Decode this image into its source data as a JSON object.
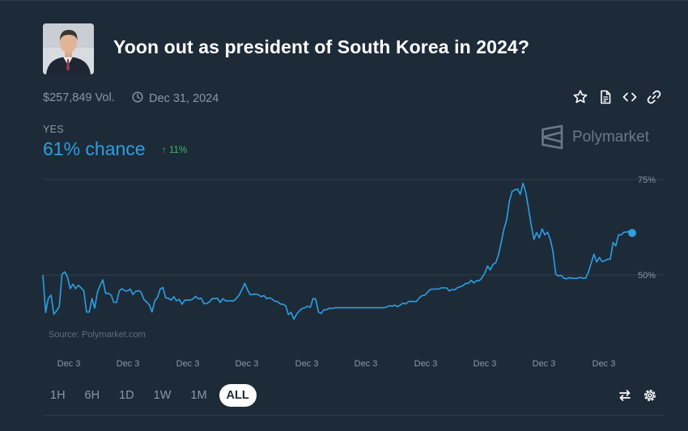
{
  "market": {
    "title": "Yoon out as president of South Korea in 2024?",
    "volume": "$257,849 Vol.",
    "end_date": "Dec 31, 2024",
    "outcome": "YES",
    "chance": "61% chance",
    "change": "11%",
    "brand": "Polymarket",
    "source": "Source: Polymarket.com"
  },
  "icons": {
    "clock": "clock-icon",
    "star": "star-icon",
    "document": "document-icon",
    "embed": "code-icon",
    "link": "link-icon",
    "swap": "swap-icon",
    "settings": "gear-icon",
    "brand": "polymarket-logo"
  },
  "colors": {
    "accent": "#2e9fe0",
    "positive": "#3fb56a",
    "background": "#1d2b39"
  },
  "time_ranges": {
    "items": [
      "1H",
      "6H",
      "1D",
      "1W",
      "1M",
      "ALL"
    ],
    "selected": "ALL"
  },
  "chart_data": {
    "type": "line",
    "title": "",
    "series": [
      {
        "values": [
          50,
          40.2,
          43.9,
          44.7,
          39.7,
          40.6,
          41.7,
          50.2,
          50.8,
          49.5,
          46.4,
          47.6,
          46.4,
          47.3,
          46.6,
          45.8,
          40.3,
          40.3,
          43.8,
          41.3,
          45.5,
          47.3,
          48.7,
          45.2,
          45.2,
          44.7,
          42.8,
          42.8,
          45.8,
          46.4,
          45.9,
          45.8,
          46.3,
          44.9,
          45.7,
          45.9,
          45.5,
          43.6,
          42.9,
          42.2,
          40.3,
          43.2,
          44.1,
          46.3,
          46.7,
          44,
          43.9,
          43.4,
          44.3,
          43.2,
          43.6,
          42.3,
          43.4,
          43.4,
          43.4,
          43.7,
          44.4,
          43.7,
          43.9,
          42.5,
          42.5,
          42.9,
          43.8,
          43.8,
          43.9,
          42.8,
          43.8,
          43.2,
          43.2,
          43.2,
          43.2,
          43.9,
          44.8,
          46.2,
          47.8,
          46.1,
          44.8,
          44.9,
          45,
          44.8,
          44.3,
          44.6,
          43.8,
          44,
          43.7,
          43.1,
          43,
          42.4,
          42.3,
          41.9,
          39.6,
          40.2,
          38.4,
          39.7,
          40.6,
          41.2,
          41.4,
          41.8,
          41.5,
          43.8,
          43.7,
          40.3,
          39.9,
          40.9,
          40.9,
          41.3,
          41.2,
          41.4,
          41.4,
          41.4,
          41.4,
          41.4,
          41.4,
          41.4,
          41.4,
          41.4,
          41.4,
          41.4,
          41.4,
          41.4,
          41.4,
          41.4,
          41.4,
          41.4,
          41.4,
          41.4,
          41.6,
          41.9,
          41.8,
          42.1,
          41.7,
          42.1,
          42.6,
          42.4,
          43,
          43.1,
          43,
          43.1,
          44,
          44.6,
          44.7,
          45.5,
          46.2,
          46.3,
          46.3,
          46.3,
          46.6,
          46.6,
          46.6,
          45.8,
          46.2,
          46.1,
          46.7,
          46.9,
          47.2,
          47.8,
          47.8,
          48.6,
          47.9,
          48.5,
          48.5,
          49.3,
          50.5,
          52.3,
          51.3,
          52.8,
          53.2,
          55.3,
          58.5,
          62,
          64.5,
          69.3,
          71.9,
          72.3,
          72.5,
          71.1,
          74,
          71.6,
          67.5,
          63.1,
          59.3,
          61.1,
          59.7,
          62.1,
          60.5,
          61.2,
          59.3,
          56,
          50.2,
          49.7,
          49.9,
          49.1,
          49,
          49.3,
          49.1,
          49.1,
          49.1,
          49.4,
          49.1,
          49.2,
          50.8,
          53.1,
          55.4,
          53.4,
          54.6,
          53.5,
          53.7,
          54.1,
          54.1,
          58.5,
          57.6,
          60.5,
          60.5,
          61.2,
          61.2,
          61.5,
          61
        ]
      }
    ],
    "x_tick_labels": [
      "Dec 3",
      "Dec 3",
      "Dec 3",
      "Dec 3",
      "Dec 3",
      "Dec 3",
      "Dec 3",
      "Dec 3",
      "Dec 3",
      "Dec 3"
    ],
    "y_tick_labels": [
      "75%",
      "50%"
    ],
    "y_ticks": [
      75,
      50
    ],
    "ylim": [
      35,
      78
    ],
    "grid": true,
    "marker_last_point": true
  }
}
